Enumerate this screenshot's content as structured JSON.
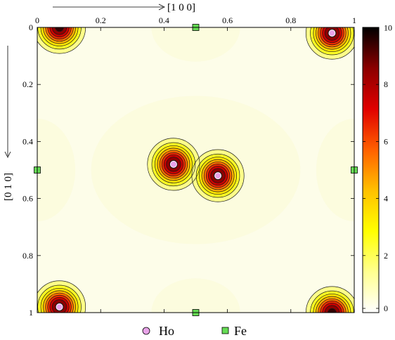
{
  "chart_data": {
    "type": "heatmap",
    "xlabel": "[1 0 0]",
    "ylabel": "[0 1 0]",
    "x_ticks": [
      "0",
      "0.2",
      "0.4",
      "0.6",
      "0.8",
      "1"
    ],
    "x_tick_values": [
      0,
      0.2,
      0.4,
      0.6,
      0.8,
      1
    ],
    "y_ticks": [
      "0",
      "0.2",
      "0.4",
      "0.6",
      "0.8",
      "1"
    ],
    "y_tick_values": [
      0,
      0.2,
      0.4,
      0.6,
      0.8,
      1
    ],
    "xlim": [
      0,
      1
    ],
    "ylim": [
      0,
      1
    ],
    "y_axis_inverted": true,
    "colorbar": {
      "range": [
        0,
        10
      ],
      "ticks": [
        "0",
        "2",
        "4",
        "6",
        "8",
        "10"
      ],
      "tick_values": [
        0,
        2,
        4,
        6,
        8,
        10
      ],
      "colors": [
        "#ffffff",
        "#ffff90",
        "#ffff00",
        "#ffc000",
        "#ff6000",
        "#e00000",
        "#8b0000",
        "#000000"
      ]
    },
    "density_peaks": [
      {
        "x": 0.07,
        "y": 0.0,
        "value": 9.5
      },
      {
        "x": 0.93,
        "y": 0.02,
        "value": 9.5
      },
      {
        "x": 0.43,
        "y": 0.48,
        "value": 9.5
      },
      {
        "x": 0.57,
        "y": 0.52,
        "value": 9.5
      },
      {
        "x": 0.07,
        "y": 0.98,
        "value": 9.5
      },
      {
        "x": 0.93,
        "y": 1.0,
        "value": 9.5
      }
    ],
    "series": [
      {
        "name": "Ho",
        "marker": "circle",
        "color": "#e8a3e8",
        "points": [
          {
            "x": 0.93,
            "y": 0.02
          },
          {
            "x": 0.43,
            "y": 0.48
          },
          {
            "x": 0.57,
            "y": 0.52
          },
          {
            "x": 0.07,
            "y": 0.98
          }
        ]
      },
      {
        "name": "Fe",
        "marker": "square",
        "color": "#66dd55",
        "points": [
          {
            "x": 0.5,
            "y": 0.0
          },
          {
            "x": 0.0,
            "y": 0.5
          },
          {
            "x": 1.0,
            "y": 0.5
          },
          {
            "x": 0.5,
            "y": 1.0
          }
        ]
      }
    ],
    "legend": {
      "placement": "bottom-center",
      "entries": [
        "Ho",
        "Fe"
      ]
    }
  }
}
